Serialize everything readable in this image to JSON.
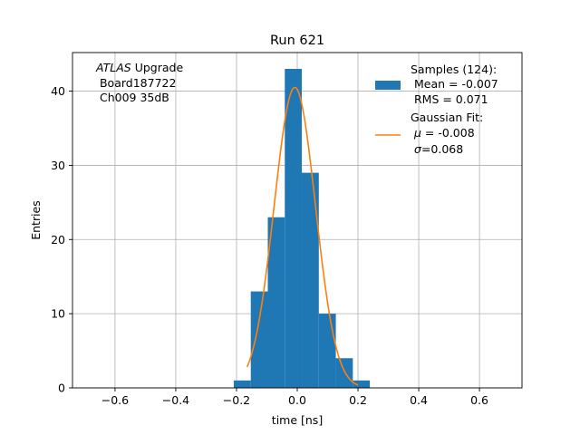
{
  "chart_data": {
    "type": "bar",
    "title": "Run 621",
    "xlabel": "time [ns]",
    "ylabel": "Entries",
    "xlim": [
      -0.74,
      0.74
    ],
    "ylim": [
      0,
      45.2
    ],
    "xticks": [
      -0.6,
      -0.4,
      -0.2,
      0.0,
      0.2,
      0.4,
      0.6
    ],
    "xtick_labels": [
      "−0.6",
      "−0.4",
      "−0.2",
      "0.0",
      "0.2",
      "0.4",
      "0.6"
    ],
    "yticks": [
      0,
      10,
      20,
      30,
      40
    ],
    "ytick_labels": [
      "0",
      "10",
      "20",
      "30",
      "40"
    ],
    "grid": true,
    "annotation": {
      "italic": "ATLAS",
      "rest": " Upgrade",
      "line2": " Board187722",
      "line3": " Ch009 35dB"
    },
    "histogram": {
      "name": "Samples (124):",
      "color": "#1f77b4",
      "bin_edges": [
        -0.209,
        -0.153,
        -0.097,
        -0.041,
        0.015,
        0.071,
        0.127,
        0.183,
        0.239
      ],
      "counts": [
        1,
        13,
        23,
        43,
        29,
        10,
        4,
        1
      ]
    },
    "fit": {
      "name": "Gaussian Fit:",
      "color": "#ff7f0e",
      "amplitude": 40.5,
      "mu": -0.008,
      "sigma": 0.068,
      "x_range": [
        -0.165,
        0.2
      ]
    },
    "legend": {
      "placement": "top-right",
      "samples_title": "Samples (124):",
      "samples_mean": " Mean = -0.007",
      "samples_rms": " RMS = 0.071",
      "fit_title": "Gaussian Fit:",
      "fit_mu_symbol": "μ",
      "fit_mu_value": " = -0.008",
      "fit_sigma_symbol": "σ",
      "fit_sigma_value": "=0.068"
    }
  }
}
